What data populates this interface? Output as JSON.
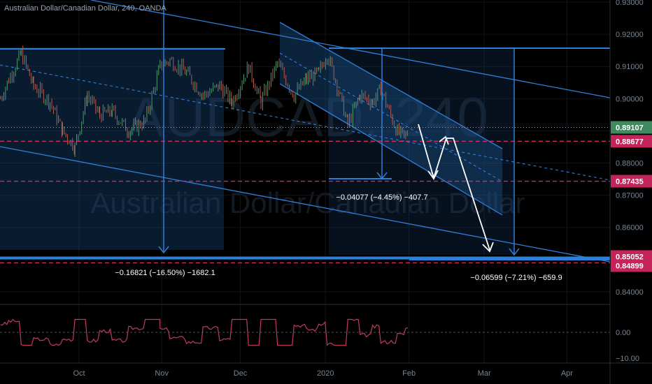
{
  "header": {
    "symbol_desc": "Australian Dollar/Canadian Dollar",
    "interval": "240",
    "exchange": "OANDA"
  },
  "watermark": {
    "ticker": "AUDCAD, 240",
    "name": "Australian Dollar/Canadian Dollar"
  },
  "colors": {
    "background": "#000000",
    "trend_line": "#2f7fd9",
    "channel_fill": "#1b4e86",
    "candle_up": "#4e9a6e",
    "candle_down": "#b55a4f",
    "pink_dash": "#d12b5b",
    "price_label_bg_green": "#3f8a5f",
    "price_label_bg_pink": "#c4245a",
    "axis_text": "#7a8591",
    "oscillator": "#c23a5b"
  },
  "chart_data": {
    "type": "candlestick",
    "symbol": "AUDCAD",
    "timeframe": "240",
    "y_axis": {
      "range": [
        0.835,
        0.93
      ],
      "ticks": [
        "0.93000",
        "0.92000",
        "0.91000",
        "0.90000",
        "0.89000",
        "0.88000",
        "0.87000",
        "0.86000",
        "0.85000",
        "0.84000"
      ]
    },
    "x_axis": {
      "tick_labels": [
        "Oct",
        "Nov",
        "Dec",
        "2020",
        "Feb",
        "Mar",
        "Apr"
      ],
      "tick_index": [
        0.0,
        1.0,
        1.95,
        2.98,
        3.99,
        4.9,
        5.9
      ]
    },
    "price_path": [
      [
        -0.95,
        0.9
      ],
      [
        -0.85,
        0.906
      ],
      [
        -0.7,
        0.914
      ],
      [
        -0.55,
        0.904
      ],
      [
        -0.35,
        0.899
      ],
      [
        -0.2,
        0.89
      ],
      [
        -0.05,
        0.885
      ],
      [
        0.1,
        0.901
      ],
      [
        0.25,
        0.895
      ],
      [
        0.4,
        0.896
      ],
      [
        0.6,
        0.89
      ],
      [
        0.8,
        0.893
      ],
      [
        0.98,
        0.91
      ],
      [
        1.1,
        0.912
      ],
      [
        1.3,
        0.908
      ],
      [
        1.5,
        0.901
      ],
      [
        1.7,
        0.904
      ],
      [
        1.85,
        0.899
      ],
      [
        2.05,
        0.91
      ],
      [
        2.2,
        0.899
      ],
      [
        2.4,
        0.911
      ],
      [
        2.6,
        0.901
      ],
      [
        2.75,
        0.906
      ],
      [
        2.9,
        0.908
      ],
      [
        3.0,
        0.914
      ],
      [
        3.1,
        0.906
      ],
      [
        3.25,
        0.892
      ],
      [
        3.4,
        0.901
      ],
      [
        3.55,
        0.899
      ],
      [
        3.65,
        0.903
      ],
      [
        3.75,
        0.896
      ],
      [
        3.85,
        0.8895
      ],
      [
        3.95,
        0.888
      ],
      [
        3.98,
        0.891
      ]
    ],
    "current_price": "0.89107",
    "price_labels": [
      {
        "value": "0.89107",
        "price": 0.89107,
        "style": "current"
      },
      {
        "value": "0.88677",
        "price": 0.88677,
        "style": "pink"
      },
      {
        "value": "0.87435",
        "price": 0.87435,
        "style": "pink"
      },
      {
        "value": "0.85052",
        "price": 0.85052,
        "style": "pink"
      },
      {
        "value": "0.84899",
        "price": 0.84899,
        "style": "pink"
      }
    ],
    "horizontal_levels": [
      {
        "price": 0.88677,
        "style": "dashed"
      },
      {
        "price": 0.87435,
        "style": "dashed"
      },
      {
        "price": 0.84899,
        "style": "dashed"
      }
    ],
    "solid_levels": [
      {
        "price": 0.8505
      }
    ],
    "measurements": [
      {
        "text": "−0.16821 (−16.50%) −1682.1"
      },
      {
        "text": "−0.04077 (−4.45%) −407.7"
      },
      {
        "text": "−0.06599 (−7.21%) −659.9"
      }
    ],
    "oscillator": {
      "ticks": [
        "0.00",
        "−10.00"
      ],
      "range": [
        -10,
        10
      ]
    }
  }
}
